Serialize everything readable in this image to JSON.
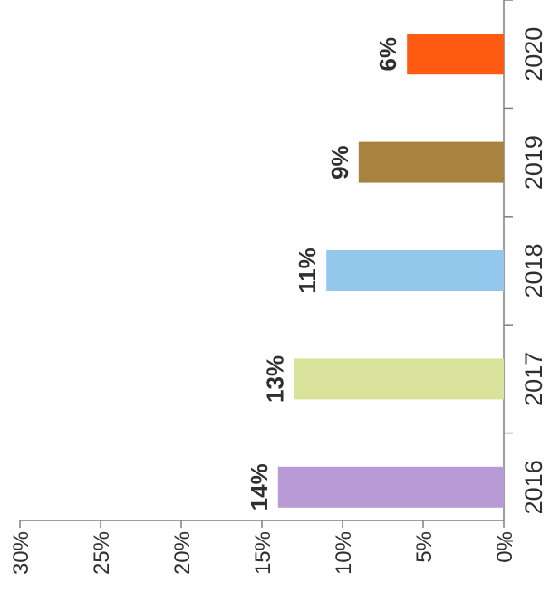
{
  "chart_data": {
    "type": "bar",
    "orientation": "horizontal",
    "categories": [
      "2016",
      "2017",
      "2018",
      "2019",
      "2020"
    ],
    "values": [
      14,
      13,
      11,
      9,
      6
    ],
    "data_labels": [
      "14%",
      "13%",
      "11%",
      "9%",
      "6%"
    ],
    "colors": [
      "#b89ad6",
      "#d9e29a",
      "#93c7ec",
      "#a8833f",
      "#ff5a12"
    ],
    "axis_ticks": [
      0,
      5,
      10,
      15,
      20,
      25,
      30
    ],
    "axis_tick_labels": [
      "0%",
      "5%",
      "10%",
      "15%",
      "20%",
      "25%",
      "30%"
    ],
    "xlim": [
      0,
      30
    ],
    "grid": false,
    "legend": "none",
    "title": "",
    "xlabel": "",
    "ylabel": ""
  }
}
